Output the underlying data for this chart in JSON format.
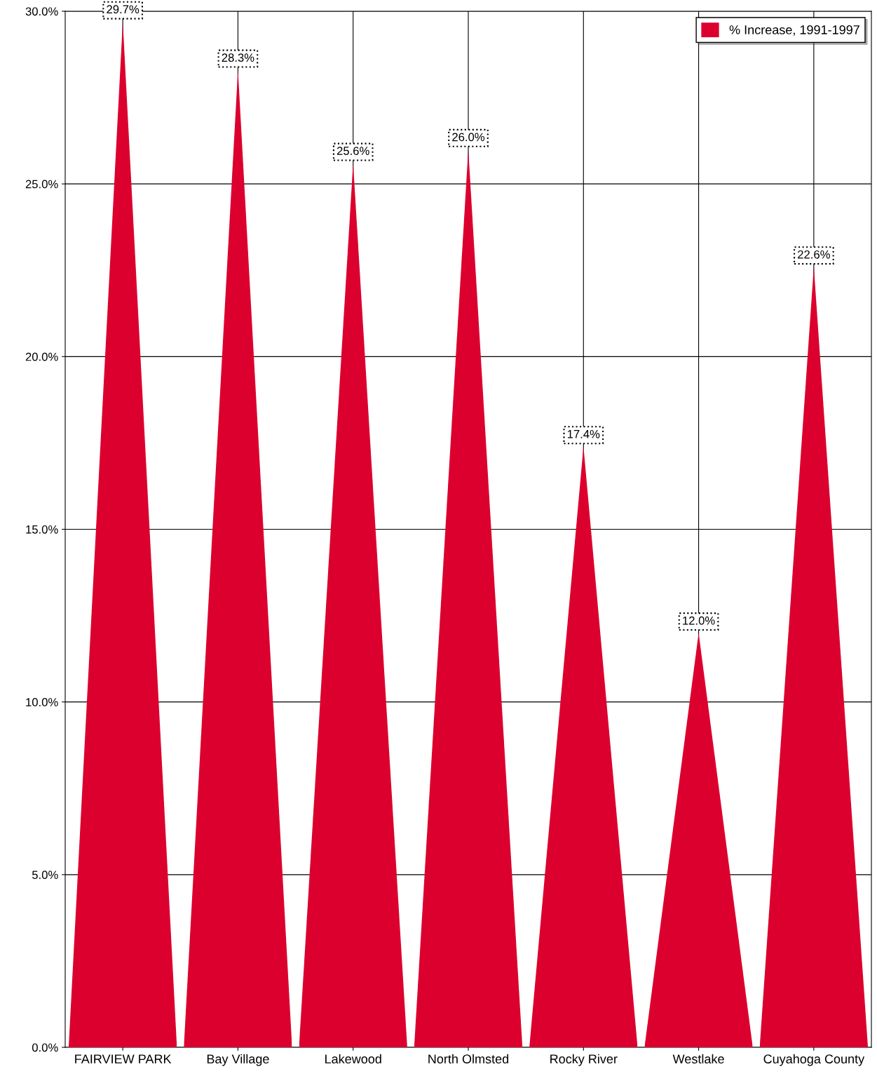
{
  "chart_data": {
    "type": "bar",
    "categories": [
      "FAIRVIEW PARK",
      "Bay Village",
      "Lakewood",
      "North Olmsted",
      "Rocky River",
      "Westlake",
      "Cuyahoga County"
    ],
    "series": [
      {
        "name": "% Increase, 1991-1997",
        "color": "#dc002e",
        "values": [
          29.7,
          28.3,
          25.6,
          26.0,
          17.4,
          12.0,
          22.6
        ],
        "value_labels": [
          "29.7%",
          "28.3%",
          "25.6%",
          "26.0%",
          "17.4%",
          "12.0%",
          "22.6%"
        ]
      }
    ],
    "ylim": [
      0,
      30
    ],
    "yticks": [
      {
        "value": 0,
        "label": "0.0%"
      },
      {
        "value": 5,
        "label": "5.0%"
      },
      {
        "value": 10,
        "label": "10.0%"
      },
      {
        "value": 15,
        "label": "15.0%"
      },
      {
        "value": 20,
        "label": "20.0%"
      },
      {
        "value": 25,
        "label": "25.0%"
      },
      {
        "value": 30,
        "label": "30.0%"
      }
    ],
    "grid": true,
    "legend": "top right"
  }
}
